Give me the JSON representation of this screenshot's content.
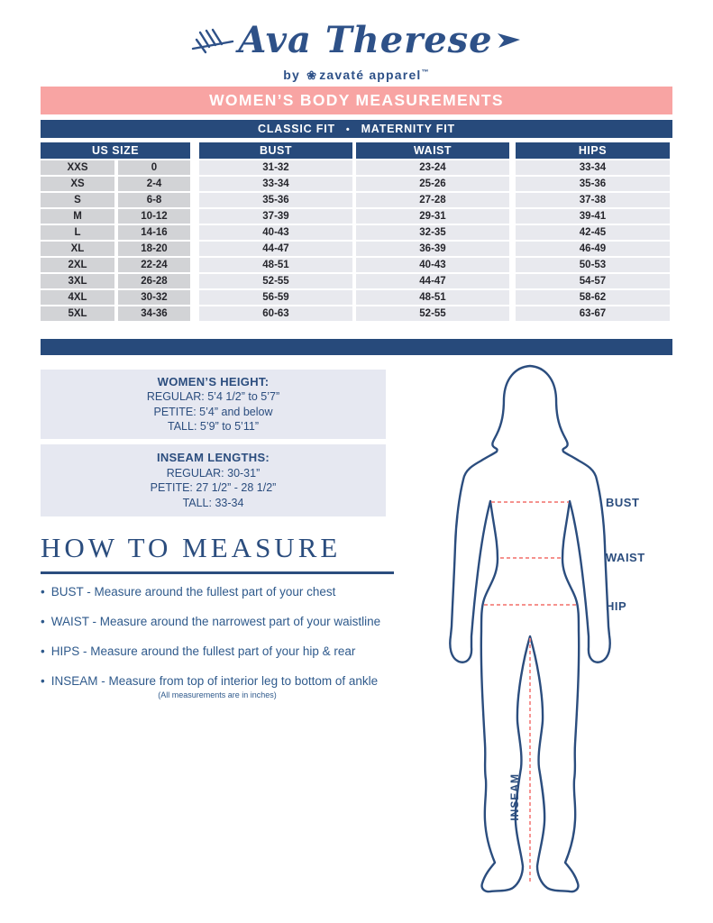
{
  "brand": {
    "name": "Ava Therese",
    "byline_by": "by",
    "flower": "❀",
    "byline_brand": "zavaté apparel",
    "trademark": "™"
  },
  "banners": {
    "title": "WOMEN’S BODY MEASUREMENTS",
    "fit_left": "CLASSIC FIT",
    "fit_sep": "•",
    "fit_right": "MATERNITY FIT"
  },
  "size_table": {
    "headers": {
      "us_size": "US SIZE",
      "bust": "BUST",
      "waist": "WAIST",
      "hips": "HIPS"
    },
    "rows": [
      [
        "XXS",
        "0",
        "31-32",
        "23-24",
        "33-34"
      ],
      [
        "XS",
        "2-4",
        "33-34",
        "25-26",
        "35-36"
      ],
      [
        "S",
        "6-8",
        "35-36",
        "27-28",
        "37-38"
      ],
      [
        "M",
        "10-12",
        "37-39",
        "29-31",
        "39-41"
      ],
      [
        "L",
        "14-16",
        "40-43",
        "32-35",
        "42-45"
      ],
      [
        "XL",
        "18-20",
        "44-47",
        "36-39",
        "46-49"
      ],
      [
        "2XL",
        "22-24",
        "48-51",
        "40-43",
        "50-53"
      ],
      [
        "3XL",
        "26-28",
        "52-55",
        "44-47",
        "54-57"
      ],
      [
        "4XL",
        "30-32",
        "56-59",
        "48-51",
        "58-62"
      ],
      [
        "5XL",
        "34-36",
        "60-63",
        "52-55",
        "63-67"
      ]
    ]
  },
  "info_boxes": [
    {
      "title": "WOMEN’S HEIGHT:",
      "lines": [
        "REGULAR: 5’4 1/2” to 5’7”",
        "PETITE: 5’4” and below",
        "TALL: 5’9” to 5’11”"
      ]
    },
    {
      "title": "INSEAM LENGTHS:",
      "lines": [
        "REGULAR: 30-31”",
        "PETITE: 27 1/2” - 28 1/2”",
        "TALL: 33-34"
      ]
    }
  ],
  "how_to_measure": {
    "title": "HOW TO MEASURE",
    "bullet": "•",
    "items": [
      "BUST - Measure around the fullest part of your chest",
      "WAIST - Measure around the narrowest part of your waistline",
      "HIPS - Measure around the fullest part of your hip & rear",
      "INSEAM - Measure from top of interior leg to bottom of ankle"
    ],
    "note": "(All measurements are in inches)"
  },
  "figure_labels": {
    "bust": "BUST",
    "waist": "WAIST",
    "hip": "HIP",
    "inseam": "INSEAM"
  },
  "colors": {
    "navy": "#274A7B",
    "logo_navy": "#2E5188",
    "pink": "#F8A4A3",
    "salmon_dash": "#F4827F",
    "cell_gray": "#D2D3D6",
    "cell_light": "#E8E9EE",
    "info_box_bg": "#E6E8F1"
  }
}
